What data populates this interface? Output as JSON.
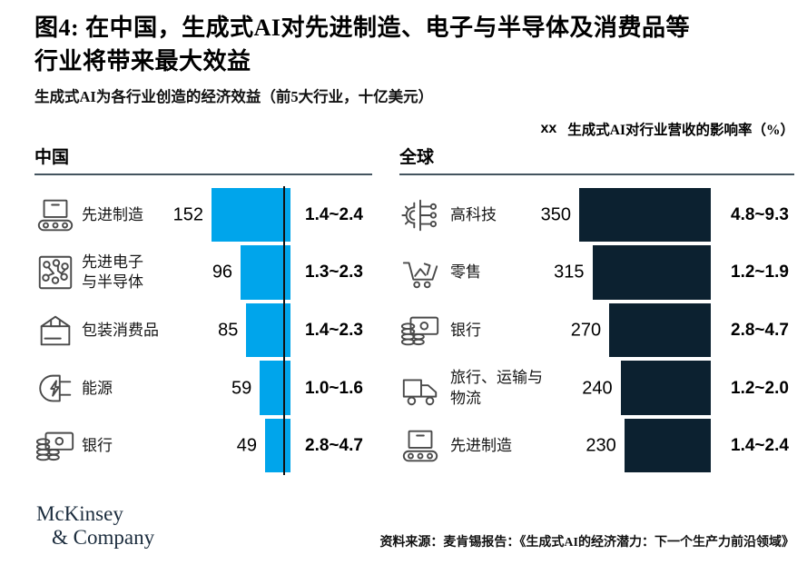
{
  "title": {
    "line1": "图4: 在中国，生成式AI对先进制造、电子与半导体及消费品等",
    "line2": "行业将带来最大效益"
  },
  "subtitle": "生成式AI为各行业创造的经济效益（前5大行业，十亿美元）",
  "legend": {
    "marker": "xx",
    "label": "生成式AI对行业营收的影响率（%）"
  },
  "colors": {
    "china_bar": "#00A5EB",
    "global_bar": "#0C2130",
    "rule": "#44545f",
    "logo_navy": "#1B2C3D"
  },
  "chart_data": [
    {
      "type": "bar",
      "title": "中国",
      "orientation": "horizontal-right-aligned",
      "unit": "十亿美元",
      "categories": [
        "先进制造",
        "先进电子\n与半导体",
        "包装消费品",
        "能源",
        "银行"
      ],
      "values": [
        152,
        96,
        85,
        59,
        49
      ],
      "impact_pct": [
        "1.4~2.4",
        "1.3~2.3",
        "1.4~2.3",
        "1.0~1.6",
        "2.8~4.7"
      ],
      "icons": [
        "conveyor-icon",
        "circuit-icon",
        "package-box-icon",
        "plug-energy-icon",
        "banknote-coins-icon"
      ],
      "bar_color": "#00A5EB",
      "xlim": [
        0,
        152
      ]
    },
    {
      "type": "bar",
      "title": "全球",
      "orientation": "horizontal-right-aligned",
      "unit": "十亿美元",
      "categories": [
        "高科技",
        "零售",
        "银行",
        "旅行、运输与\n物流",
        "先进制造"
      ],
      "values": [
        350,
        315,
        270,
        240,
        230
      ],
      "impact_pct": [
        "4.8~9.3",
        "1.2~1.9",
        "2.8~4.7",
        "1.2~2.0",
        "1.4~2.4"
      ],
      "icons": [
        "gear-network-icon",
        "shopping-cart-icon",
        "banknote-coins-icon",
        "truck-icon",
        "conveyor-icon"
      ],
      "bar_color": "#0C2130",
      "xlim": [
        0,
        350
      ]
    }
  ],
  "footer": {
    "logo_line1": "McKinsey",
    "logo_line2": "& Company",
    "source": "资料来源：麦肯锡报告：《生成式AI的经济潜力：下一个生产力前沿领域》"
  }
}
